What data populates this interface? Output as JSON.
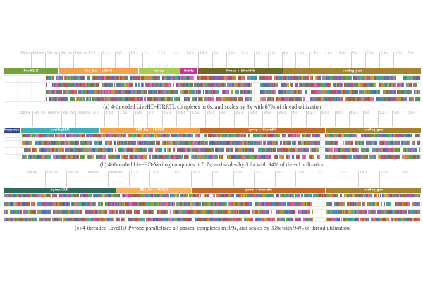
{
  "figure": {
    "grid_color": "#ececec",
    "tick_line_color": "#cfcfcf",
    "tick_label_color": "#9a9a9a",
    "row_border_color": "#e6e6e6",
    "caption_color": "#3a3a3a",
    "strip_palette": [
      "#5d9aa8",
      "#9b59a0",
      "#d76fb8",
      "#4e9a51",
      "#b8b342",
      "#4a78b5",
      "#d9803f",
      "#a85a4b",
      "#c14f4f",
      "#7f7f7f",
      "#43a1a1",
      "#8068b5",
      "#ce5fa0",
      "#6aa23f",
      "#3f8fc4",
      "#b5962f",
      "#996633",
      "#54b08a",
      "#c9566b",
      "#5d5db5"
    ],
    "charts": [
      {
        "name": "LiveHD-FIRRTL",
        "caption": "(a) 4-threaded LiveHD-FIRRTL  completes in 6s, and scales by 3x with 87% of thread utilization",
        "tick_labels": [
          "200 ms",
          "400 ms",
          "600 ms",
          "800 ms",
          "1000 ms",
          "1.2 s",
          "1.4 s",
          "1.6 s",
          "1.8 s",
          "2 s",
          "2.2 s",
          "2.4 s",
          "2.6 s",
          "2.8 s",
          "3 s",
          "3.2 s",
          "3.4 s",
          "3.6 s",
          "3.8 s",
          "4 s",
          "4.2 s",
          "4.4 s",
          "4.6 s",
          "4.8 s",
          "5 s",
          "5.2 s",
          "5.4 s",
          "5.6 s",
          "5.8 s"
        ],
        "passes": [
          {
            "label": "Firrtl2LN",
            "color": "#74a33e",
            "width_pct": 13.2
          },
          {
            "label": "SSA_lns + LN2LG",
            "color": "#f2a24c",
            "width_pct": 19.1
          },
          {
            "label": "cprop",
            "color": "#a8cc4e",
            "width_pct": 10.0
          },
          {
            "label": "firbits",
            "color": "#c3349e",
            "width_pct": 4.1
          },
          {
            "label": "firmap + bitwidth",
            "color": "#6e6b24",
            "width_pct": 20.3
          },
          {
            "label": "verilog_gen",
            "color": "#a3832f",
            "width_pct": 33.3
          }
        ],
        "threads": [
          {
            "spans": [
              [
                10.0,
                94.3
              ],
              [
                95.7,
                100
              ]
            ]
          },
          {
            "spans": [
              [
                10.0,
                59.5
              ],
              [
                61.6,
                100
              ]
            ]
          },
          {
            "spans": [
              [
                10.0,
                59.5
              ],
              [
                61.6,
                100
              ]
            ]
          },
          {
            "spans": [
              [
                10.0,
                59.5
              ],
              [
                61.6,
                100
              ]
            ]
          }
        ]
      },
      {
        "name": "LiveHD-Verilog",
        "caption": "(b) 4-threaded LiveHD-Verilog  completes in 5.7s, and scales by 3.2x with 94% of thread utilization",
        "tick_labels": [
          "200 ms",
          "400 ms",
          "600 ms",
          "800 ms",
          "1000 ms",
          "1.2 s",
          "1.4 s",
          "1.6 s",
          "1.8 s",
          "2 s",
          "2.2 s",
          "2.4 s",
          "2.6 s",
          "2.8 s",
          "3 s",
          "3.2 s",
          "3.4 s",
          "3.6 s",
          "3.8 s",
          "4 s",
          "4.2 s",
          "4.4 s",
          "4.6 s",
          "4.8 s",
          "5 s",
          "5.2 s",
          "5.4 s",
          "5.6 s"
        ],
        "passes": [
          {
            "label": "liveparse",
            "color": "#2b4a80",
            "width_pct": 4.0
          },
          {
            "label": "verilog2LN",
            "color": "#43aeb2",
            "width_pct": 19.0
          },
          {
            "label": "SSA_lns + LN2LG",
            "color": "#f2a24c",
            "width_pct": 24.0
          },
          {
            "label": "cprop + bitwidth",
            "color": "#c06a2b",
            "width_pct": 30.0
          },
          {
            "label": "verilog_gen",
            "color": "#a3832f",
            "width_pct": 23.0
          }
        ],
        "threads": [
          {
            "spans": [
              [
                4.2,
                76.0
              ],
              [
                77.2,
                100
              ]
            ]
          },
          {
            "spans": [
              [
                4.2,
                76.0
              ],
              [
                77.2,
                80.3
              ],
              [
                81.5,
                100
              ]
            ]
          },
          {
            "spans": [
              [
                4.2,
                76.0
              ],
              [
                77.2,
                100
              ]
            ]
          },
          {
            "spans": [
              [
                4.2,
                76.0
              ],
              [
                77.2,
                100
              ]
            ]
          }
        ]
      },
      {
        "name": "LiveHD-Pyrope",
        "caption": "(c) 4-threaded LiveHD-Pyrope parallelizes all passes, completes in 3.9s, and scales by 3.8x with 94% of thread utilization",
        "tick_labels": [
          "200 ms",
          "400 ms",
          "600 ms",
          "800 ms",
          "1000 ms",
          "1.2 s",
          "1.4 s",
          "1.6 s",
          "1.8 s",
          "2 s",
          "2.2 s",
          "2.4 s",
          "2.6 s",
          "2.8 s",
          "3 s",
          "3.2 s",
          "3.4 s",
          "3.6 s",
          "3.8 s"
        ],
        "passes": [
          {
            "label": "pyrope2LN",
            "color": "#2e6b5e",
            "width_pct": 27.0
          },
          {
            "label": "SSA_lns + LN2LG",
            "color": "#f6b05e",
            "width_pct": 18.0
          },
          {
            "label": "cprop + bitwidth",
            "color": "#c06a2b",
            "width_pct": 32.0
          },
          {
            "label": "verilog_gen",
            "color": "#a3832f",
            "width_pct": 23.0
          }
        ],
        "threads": [
          {
            "spans": [
              [
                0,
                100
              ]
            ]
          },
          {
            "spans": [
              [
                0,
                74.3
              ],
              [
                77.3,
                100
              ]
            ]
          },
          {
            "spans": [
              [
                0,
                74.3
              ],
              [
                77.3,
                100
              ]
            ]
          },
          {
            "spans": [
              [
                0,
                74.3
              ],
              [
                77.3,
                100
              ]
            ]
          }
        ]
      }
    ]
  },
  "chart_data": [
    {
      "type": "gantt",
      "title": "(a) 4-threaded LiveHD-FIRRTL  completes in 6s, and scales by 3x with 87% of thread utilization",
      "time_unit": "s",
      "xlim": [
        0,
        6.0
      ],
      "x_tick_interval_ms": 200,
      "threads": 4,
      "total_seconds": 6.0,
      "speedup": "3x",
      "utilization_pct": 87,
      "passes": [
        {
          "name": "Firrtl2LN",
          "start": 0.0,
          "end": 0.8
        },
        {
          "name": "SSA_lns + LN2LG",
          "start": 0.8,
          "end": 1.95
        },
        {
          "name": "cprop",
          "start": 1.95,
          "end": 2.55
        },
        {
          "name": "firbits",
          "start": 2.55,
          "end": 2.8
        },
        {
          "name": "firmap + bitwidth",
          "start": 2.8,
          "end": 4.0
        },
        {
          "name": "verilog_gen",
          "start": 4.0,
          "end": 6.0
        }
      ]
    },
    {
      "type": "gantt",
      "title": "(b) 4-threaded LiveHD-Verilog  completes in 5.7s, and scales by 3.2x with 94% of thread utilization",
      "time_unit": "s",
      "xlim": [
        0,
        5.7
      ],
      "x_tick_interval_ms": 200,
      "threads": 4,
      "total_seconds": 5.7,
      "speedup": "3.2x",
      "utilization_pct": 94,
      "passes": [
        {
          "name": "liveparse",
          "start": 0.0,
          "end": 0.23
        },
        {
          "name": "verilog2LN",
          "start": 0.23,
          "end": 1.31
        },
        {
          "name": "SSA_lns + LN2LG",
          "start": 1.31,
          "end": 2.68
        },
        {
          "name": "cprop + bitwidth",
          "start": 2.68,
          "end": 4.39
        },
        {
          "name": "verilog_gen",
          "start": 4.39,
          "end": 5.7
        }
      ]
    },
    {
      "type": "gantt",
      "title": "(c) 4-threaded LiveHD-Pyrope parallelizes all passes, completes in 3.9s, and scales by 3.8x with 94% of thread utilization",
      "time_unit": "s",
      "xlim": [
        0,
        3.9
      ],
      "x_tick_interval_ms": 200,
      "threads": 4,
      "total_seconds": 3.9,
      "speedup": "3.8x",
      "utilization_pct": 94,
      "passes": [
        {
          "name": "pyrope2LN",
          "start": 0.0,
          "end": 1.05
        },
        {
          "name": "SSA_lns + LN2LG",
          "start": 1.05,
          "end": 1.75
        },
        {
          "name": "cprop + bitwidth",
          "start": 1.75,
          "end": 3.0
        },
        {
          "name": "verilog_gen",
          "start": 3.0,
          "end": 3.9
        }
      ]
    }
  ]
}
